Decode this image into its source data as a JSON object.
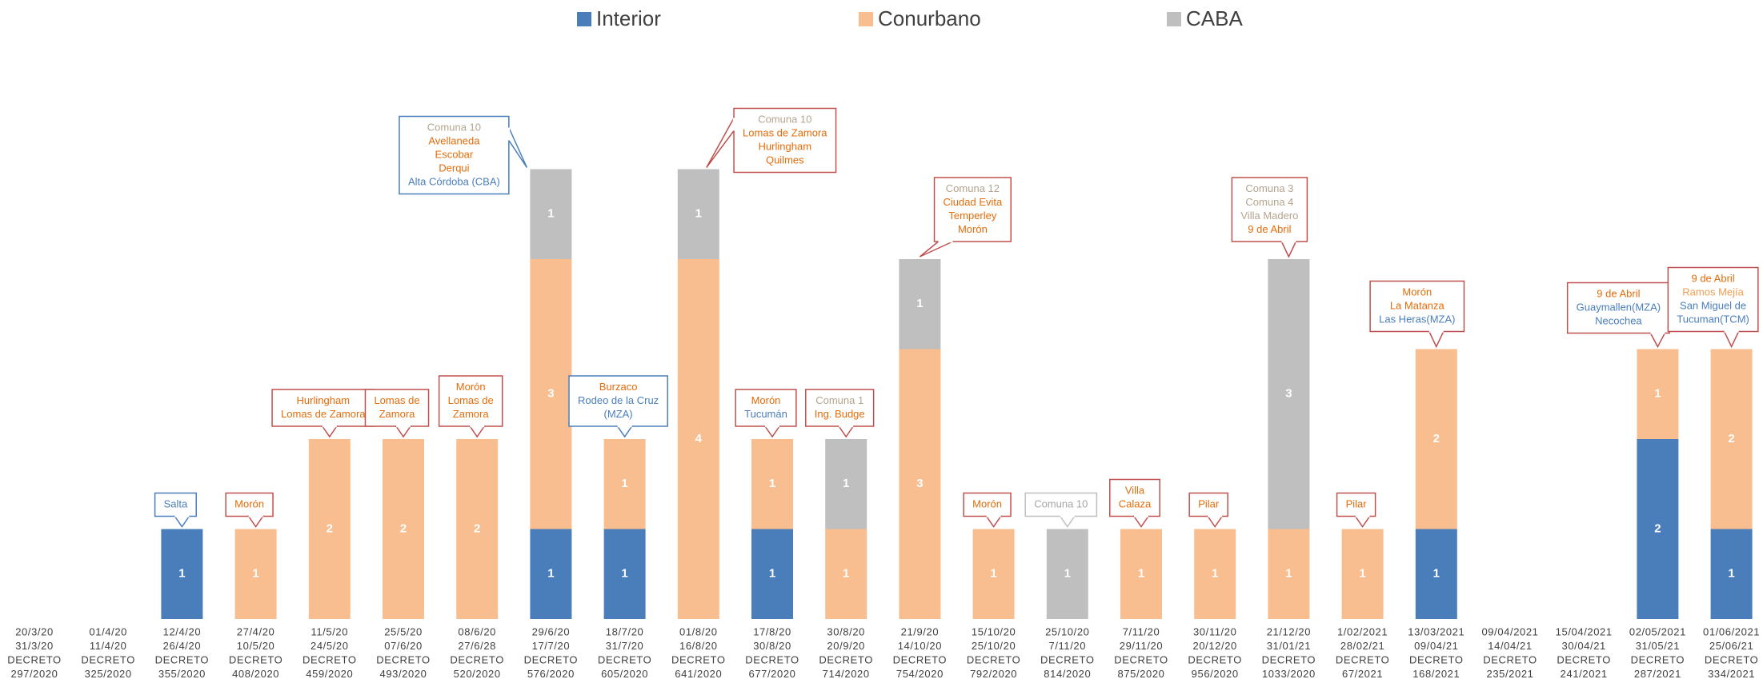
{
  "chart_data": {
    "type": "stacked_bar",
    "categories": [
      [
        "20/3/20",
        "31/3/20",
        "DECRETO",
        "297/2020"
      ],
      [
        "01/4/20",
        "11/4/20",
        "DECRETO",
        "325/2020"
      ],
      [
        "12/4/20",
        "26/4/20",
        "DECRETO",
        "355/2020"
      ],
      [
        "27/4/20",
        "10/5/20",
        "DECRETO",
        "408/2020"
      ],
      [
        "11/5/20",
        "24/5/20",
        "DECRETO",
        "459/2020"
      ],
      [
        "25/5/20",
        "07/6/20",
        "DECRETO",
        "493/2020"
      ],
      [
        "08/6/20",
        "27/6/28",
        "DECRETO",
        "520/2020"
      ],
      [
        "29/6/20",
        "17/7/20",
        "DECRETO",
        "576/2020"
      ],
      [
        "18/7/20",
        "31/7/20",
        "DECRETO",
        "605/2020"
      ],
      [
        "01/8/20",
        "16/8/20",
        "DECRETO",
        "641/2020"
      ],
      [
        "17/8/20",
        "30/8/20",
        "DECRETO",
        "677/2020"
      ],
      [
        "30/8/20",
        "20/9/20",
        "DECRETO",
        "714/2020"
      ],
      [
        "21/9/20",
        "14/10/20",
        "DECRETO",
        "754/2020"
      ],
      [
        "15/10/20",
        "25/10/20",
        "DECRETO",
        "792/2020"
      ],
      [
        "25/10/20",
        "7/11/20",
        "DECRETO",
        "814/2020"
      ],
      [
        "7/11/20",
        "29/11/20",
        "DECRETO",
        "875/2020"
      ],
      [
        "30/11/20",
        "20/12/20",
        "DECRETO",
        "956/2020"
      ],
      [
        "21/12/20",
        "31/01/21",
        "DECRETO",
        "1033/2020"
      ],
      [
        "1/02/2021",
        "28/02/21",
        "DECRETO",
        "67/2021"
      ],
      [
        "13/03/2021",
        "09/04/21",
        "DECRETO",
        "168/2021"
      ],
      [
        "09/04/2021",
        "14/04/21",
        "DECRETO",
        "235/2021"
      ],
      [
        "15/04/2021",
        "30/04/21",
        "DECRETO",
        "241/2021"
      ],
      [
        "02/05/2021",
        "31/05/21",
        "DECRETO",
        "287/2021"
      ],
      [
        "01/06/2021",
        "25/06/21",
        "DECRETO",
        "334/2021"
      ]
    ],
    "series": [
      {
        "name": "Interior",
        "color": "#4a7ebb",
        "values": [
          0,
          0,
          1,
          0,
          0,
          0,
          0,
          1,
          1,
          0,
          1,
          0,
          0,
          0,
          0,
          0,
          0,
          0,
          0,
          1,
          0,
          0,
          2,
          1
        ]
      },
      {
        "name": "Conurbano",
        "color": "#f9be8f",
        "values": [
          0,
          0,
          0,
          1,
          2,
          2,
          2,
          3,
          1,
          4,
          1,
          1,
          3,
          1,
          0,
          1,
          1,
          1,
          1,
          2,
          0,
          0,
          1,
          2
        ]
      },
      {
        "name": "CABA",
        "color": "#bfbfbf",
        "values": [
          0,
          0,
          0,
          0,
          0,
          0,
          0,
          1,
          0,
          1,
          0,
          1,
          1,
          0,
          1,
          0,
          0,
          3,
          0,
          0,
          0,
          0,
          0,
          0
        ]
      }
    ],
    "ylim": [
      0,
      7
    ],
    "annotations": [
      null,
      null,
      {
        "border": "#4a7ebb",
        "lines": [
          {
            "text": "Salta",
            "color": "#4a7ebb"
          }
        ]
      },
      {
        "border": "#c0504d",
        "lines": [
          {
            "text": "Morón",
            "color": "#e46c0a"
          }
        ]
      },
      {
        "border": "#c0504d",
        "lines": [
          {
            "text": "Hurlingham",
            "color": "#e46c0a"
          },
          {
            "text": "Lomas de Zamora",
            "color": "#e46c0a"
          }
        ]
      },
      {
        "border": "#c0504d",
        "lines": [
          {
            "text": "Lomas de",
            "color": "#e46c0a"
          },
          {
            "text": "Zamora",
            "color": "#e46c0a"
          }
        ]
      },
      {
        "border": "#c0504d",
        "lines": [
          {
            "text": "Morón",
            "color": "#e46c0a"
          },
          {
            "text": "Lomas de",
            "color": "#e46c0a"
          },
          {
            "text": "Zamora",
            "color": "#e46c0a"
          }
        ]
      },
      {
        "border": "#4a7ebb",
        "lines": [
          {
            "text": "Comuna 10",
            "color": "#b4a48f"
          },
          {
            "text": "Avellaneda",
            "color": "#e46c0a"
          },
          {
            "text": "Escobar",
            "color": "#e46c0a"
          },
          {
            "text": "Derqui",
            "color": "#e46c0a"
          },
          {
            "text": "Alta Córdoba (CBA)",
            "color": "#4a7ebb"
          }
        ]
      },
      {
        "border": "#4a7ebb",
        "lines": [
          {
            "text": "Burzaco",
            "color": "#e46c0a"
          },
          {
            "text": "Rodeo de la Cruz",
            "color": "#4a7ebb"
          },
          {
            "text": "(MZA)",
            "color": "#4a7ebb"
          }
        ]
      },
      {
        "border": "#c0504d",
        "lines": [
          {
            "text": "Comuna 10",
            "color": "#b4a48f"
          },
          {
            "text": "Lomas de Zamora",
            "color": "#e46c0a"
          },
          {
            "text": "Hurlingham",
            "color": "#e46c0a"
          },
          {
            "text": "Quilmes",
            "color": "#e46c0a"
          }
        ]
      },
      {
        "border": "#c0504d",
        "lines": [
          {
            "text": "Morón",
            "color": "#e46c0a"
          },
          {
            "text": "Tucumán",
            "color": "#4a7ebb"
          }
        ]
      },
      {
        "border": "#c0504d",
        "lines": [
          {
            "text": "Comuna 1",
            "color": "#b4a48f"
          },
          {
            "text": "Ing. Budge",
            "color": "#e46c0a"
          }
        ]
      },
      {
        "border": "#c0504d",
        "lines": [
          {
            "text": "Comuna 12",
            "color": "#b4a48f"
          },
          {
            "text": "Ciudad Evita",
            "color": "#e46c0a"
          },
          {
            "text": "Temperley",
            "color": "#e46c0a"
          },
          {
            "text": "Morón",
            "color": "#e46c0a"
          }
        ]
      },
      {
        "border": "#c0504d",
        "lines": [
          {
            "text": "Morón",
            "color": "#e46c0a"
          }
        ]
      },
      {
        "border": "#bfbfbf",
        "lines": [
          {
            "text": "Comuna 10",
            "color": "#a6a6a6"
          }
        ]
      },
      {
        "border": "#c0504d",
        "lines": [
          {
            "text": "Villa",
            "color": "#e46c0a"
          },
          {
            "text": "Calaza",
            "color": "#e46c0a"
          }
        ]
      },
      {
        "border": "#c0504d",
        "lines": [
          {
            "text": "Pilar",
            "color": "#e46c0a"
          }
        ]
      },
      {
        "border": "#c0504d",
        "lines": [
          {
            "text": "Comuna 3",
            "color": "#b4a48f"
          },
          {
            "text": "Comuna 4",
            "color": "#b4a48f"
          },
          {
            "text": "Villa Madero",
            "color": "#b4a48f"
          },
          {
            "text": "9 de Abril",
            "color": "#e46c0a"
          }
        ]
      },
      {
        "border": "#c0504d",
        "lines": [
          {
            "text": "Pilar",
            "color": "#e46c0a"
          }
        ]
      },
      {
        "border": "#c0504d",
        "lines": [
          {
            "text": "Morón",
            "color": "#e46c0a"
          },
          {
            "text": "La Matanza",
            "color": "#e46c0a"
          },
          {
            "text": "Las Heras(MZA)",
            "color": "#4a7ebb"
          }
        ]
      },
      null,
      null,
      {
        "border": "#c0504d",
        "lines": [
          {
            "text": "9 de Abril",
            "color": "#e46c0a"
          },
          {
            "text": "Guaymallen(MZA)",
            "color": "#4a7ebb"
          },
          {
            "text": "Necochea",
            "color": "#4a7ebb"
          }
        ]
      },
      {
        "border": "#c0504d",
        "lines": [
          {
            "text": "9 de Abril",
            "color": "#e46c0a"
          },
          {
            "text": "Ramos Mejía",
            "color": "#f39c50"
          },
          {
            "text": "San Miguel de",
            "color": "#4a7ebb"
          },
          {
            "text": "Tucuman(TCM)",
            "color": "#4a7ebb"
          }
        ]
      }
    ]
  }
}
